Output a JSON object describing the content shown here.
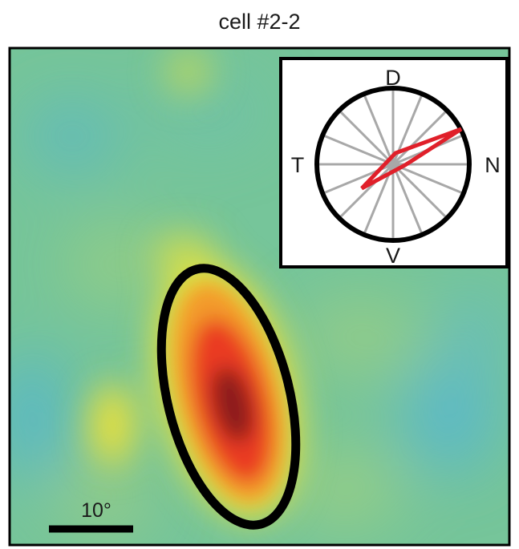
{
  "title": "cell #2-2",
  "scale_bar": {
    "label": "10°"
  },
  "inset": {
    "labels": {
      "top": "D",
      "bottom": "V",
      "left": "T",
      "right": "N"
    },
    "spokes": 16
  },
  "colors": {
    "map_background": "#76c59a",
    "field_outline": "#000000",
    "polar_curve": "#e0202a",
    "spokes": "#a8a8a8"
  }
}
